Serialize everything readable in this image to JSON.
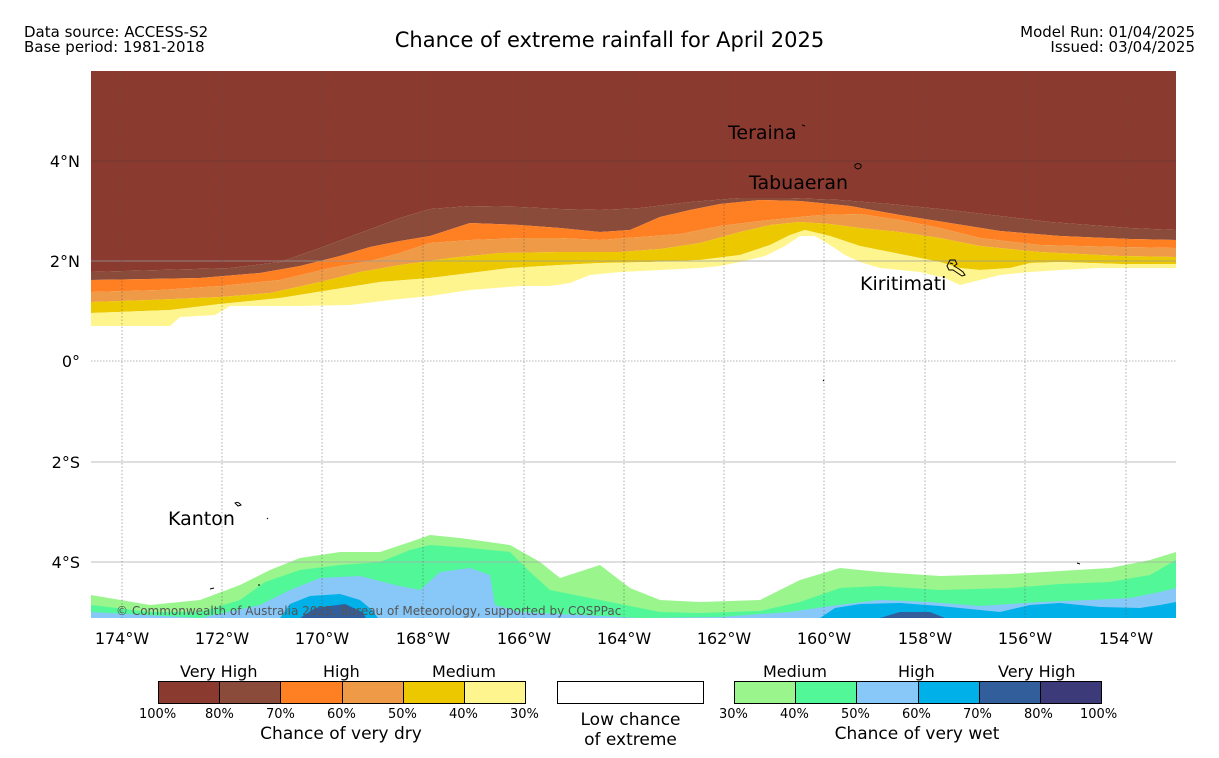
{
  "header": {
    "data_source": "Data source: ACCESS-S2",
    "base_period": "Base period: 1981-2018",
    "title": "Chance of extreme rainfall for April 2025",
    "model_run": "Model Run: 01/04/2025",
    "issued": "Issued: 03/04/2025"
  },
  "map": {
    "lat_labels": [
      "4°N",
      "2°N",
      "0°",
      "2°S",
      "4°S"
    ],
    "lon_labels": [
      "174°W",
      "172°W",
      "170°W",
      "168°W",
      "166°W",
      "164°W",
      "162°W",
      "160°W",
      "158°W",
      "156°W",
      "154°W"
    ],
    "places": [
      "Teraina",
      "Tabuaeran",
      "Kiritimati",
      "Kanton"
    ],
    "copyright": "© Commonwealth of Australia 2025, Bureau of Meteorology, supported by COSPPac"
  },
  "legend": {
    "dry": {
      "groups": [
        "Very High",
        "High",
        "Medium"
      ],
      "ticks": [
        "100%",
        "80%",
        "70%",
        "60%",
        "50%",
        "40%",
        "30%"
      ],
      "colors": [
        "#8b3a30",
        "#8a4b3a",
        "#ff7f23",
        "#ee9a46",
        "#ecc800",
        "#fff58e"
      ],
      "caption": "Chance of very dry"
    },
    "neutral": {
      "line1": "Low chance",
      "line2": "of extreme",
      "color": "#ffffff"
    },
    "wet": {
      "groups": [
        "Medium",
        "High",
        "Very High"
      ],
      "ticks": [
        "30%",
        "40%",
        "50%",
        "60%",
        "70%",
        "80%",
        "100%"
      ],
      "colors": [
        "#99f58c",
        "#52f898",
        "#88c8f8",
        "#00b0e8",
        "#325e9c",
        "#3c3a78"
      ],
      "caption": "Chance of very wet"
    }
  }
}
